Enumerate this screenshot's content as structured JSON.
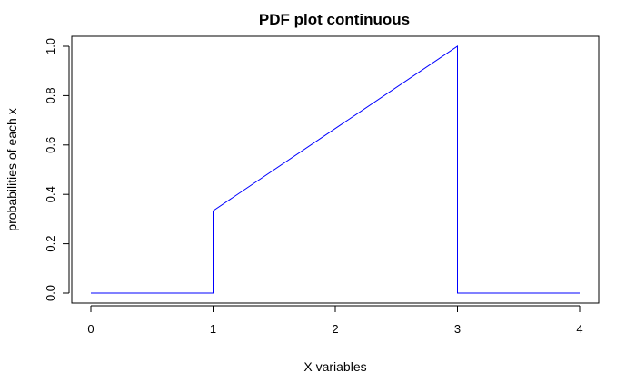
{
  "chart_data": {
    "type": "line",
    "title": "PDF plot continuous",
    "xlabel": "X variables",
    "ylabel": "probabilities of each x",
    "xlim": [
      0,
      4
    ],
    "ylim": [
      0,
      1
    ],
    "x_ticks": [
      0,
      1,
      2,
      3,
      4
    ],
    "x_tick_labels": [
      "0",
      "1",
      "2",
      "3",
      "4"
    ],
    "y_ticks": [
      0,
      0.2,
      0.4,
      0.6,
      0.8,
      1.0
    ],
    "y_tick_labels": [
      "0.0",
      "0.2",
      "0.4",
      "0.6",
      "0.8",
      "1.0"
    ],
    "grid": false,
    "series": [
      {
        "color": "#0000ff",
        "points": [
          [
            0,
            0
          ],
          [
            1,
            0
          ],
          [
            1,
            0.3333
          ],
          [
            3,
            1.0
          ],
          [
            3,
            0
          ],
          [
            4,
            0
          ]
        ]
      }
    ]
  }
}
